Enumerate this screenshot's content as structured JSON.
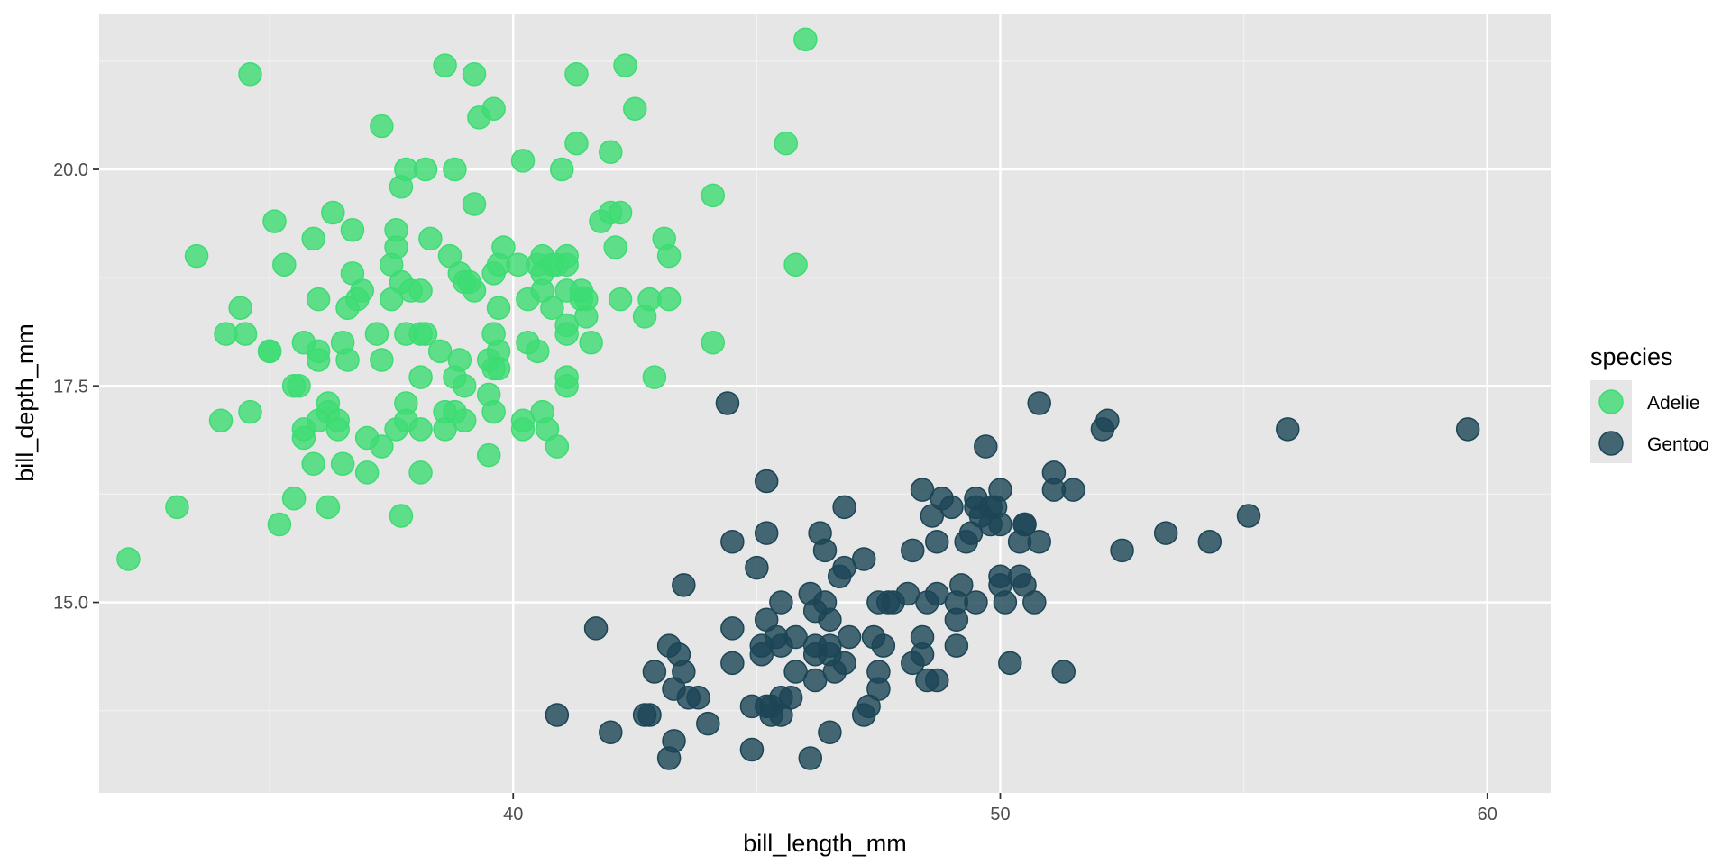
{
  "chart_data": {
    "type": "scatter",
    "xlabel": "bill_length_mm",
    "ylabel": "bill_depth_mm",
    "xlim": [
      31.5,
      61.3
    ],
    "ylim": [
      12.8,
      21.8
    ],
    "x_ticks": [
      40,
      50,
      60
    ],
    "x_tick_labels": [
      "40",
      "50",
      "60"
    ],
    "y_ticks": [
      15.0,
      17.5,
      20.0
    ],
    "y_tick_labels": [
      "15.0",
      "17.5",
      "20.0"
    ],
    "grid": true,
    "legend": {
      "title": "species",
      "position": "right"
    },
    "series": [
      {
        "name": "Adelie",
        "color": "#3ddc73",
        "points": [
          [
            32.1,
            15.5
          ],
          [
            33.1,
            16.1
          ],
          [
            33.5,
            19.0
          ],
          [
            34.0,
            17.1
          ],
          [
            34.1,
            18.1
          ],
          [
            34.4,
            18.4
          ],
          [
            34.5,
            18.1
          ],
          [
            34.6,
            21.1
          ],
          [
            34.6,
            17.2
          ],
          [
            35.0,
            17.9
          ],
          [
            35.0,
            17.9
          ],
          [
            35.1,
            19.4
          ],
          [
            35.2,
            15.9
          ],
          [
            35.3,
            18.9
          ],
          [
            35.5,
            16.2
          ],
          [
            35.5,
            17.5
          ],
          [
            35.6,
            17.5
          ],
          [
            35.7,
            16.9
          ],
          [
            35.7,
            17.0
          ],
          [
            35.7,
            18.0
          ],
          [
            35.9,
            16.6
          ],
          [
            35.9,
            19.2
          ],
          [
            36.0,
            17.1
          ],
          [
            36.0,
            17.8
          ],
          [
            36.0,
            17.9
          ],
          [
            36.0,
            18.5
          ],
          [
            36.2,
            16.1
          ],
          [
            36.2,
            17.2
          ],
          [
            36.2,
            17.3
          ],
          [
            36.3,
            19.5
          ],
          [
            36.4,
            17.0
          ],
          [
            36.4,
            17.1
          ],
          [
            36.5,
            16.6
          ],
          [
            36.5,
            18.0
          ],
          [
            36.6,
            17.8
          ],
          [
            36.6,
            18.4
          ],
          [
            36.7,
            18.8
          ],
          [
            36.7,
            19.3
          ],
          [
            36.8,
            18.5
          ],
          [
            36.9,
            18.6
          ],
          [
            37.0,
            16.5
          ],
          [
            37.0,
            16.9
          ],
          [
            37.2,
            18.1
          ],
          [
            37.3,
            16.8
          ],
          [
            37.3,
            17.8
          ],
          [
            37.3,
            20.5
          ],
          [
            37.5,
            18.5
          ],
          [
            37.5,
            18.9
          ],
          [
            37.6,
            17.0
          ],
          [
            37.6,
            19.1
          ],
          [
            37.6,
            19.3
          ],
          [
            37.7,
            16.0
          ],
          [
            37.7,
            18.7
          ],
          [
            37.7,
            19.8
          ],
          [
            37.8,
            17.1
          ],
          [
            37.8,
            17.3
          ],
          [
            37.8,
            18.1
          ],
          [
            37.8,
            20.0
          ],
          [
            37.9,
            18.6
          ],
          [
            38.1,
            16.5
          ],
          [
            38.1,
            17.0
          ],
          [
            38.1,
            17.6
          ],
          [
            38.1,
            18.1
          ],
          [
            38.1,
            18.6
          ],
          [
            38.2,
            18.1
          ],
          [
            38.2,
            20.0
          ],
          [
            38.3,
            19.2
          ],
          [
            38.5,
            17.9
          ],
          [
            38.6,
            17.0
          ],
          [
            38.6,
            17.2
          ],
          [
            38.6,
            21.2
          ],
          [
            38.7,
            19.0
          ],
          [
            38.8,
            17.2
          ],
          [
            38.8,
            17.6
          ],
          [
            38.8,
            20.0
          ],
          [
            38.9,
            17.8
          ],
          [
            38.9,
            18.8
          ],
          [
            39.0,
            17.1
          ],
          [
            39.0,
            17.5
          ],
          [
            39.0,
            18.7
          ],
          [
            39.1,
            18.7
          ],
          [
            39.2,
            18.6
          ],
          [
            39.2,
            19.6
          ],
          [
            39.2,
            21.1
          ],
          [
            39.3,
            20.6
          ],
          [
            39.5,
            16.7
          ],
          [
            39.5,
            17.4
          ],
          [
            39.5,
            17.8
          ],
          [
            39.6,
            17.2
          ],
          [
            39.6,
            17.7
          ],
          [
            39.6,
            18.1
          ],
          [
            39.6,
            18.8
          ],
          [
            39.6,
            20.7
          ],
          [
            39.7,
            17.7
          ],
          [
            39.7,
            17.9
          ],
          [
            39.7,
            18.4
          ],
          [
            39.7,
            18.9
          ],
          [
            39.8,
            19.1
          ],
          [
            40.1,
            18.9
          ],
          [
            40.2,
            17.0
          ],
          [
            40.2,
            17.1
          ],
          [
            40.2,
            20.1
          ],
          [
            40.3,
            18.0
          ],
          [
            40.3,
            18.5
          ],
          [
            40.5,
            17.9
          ],
          [
            40.5,
            18.9
          ],
          [
            40.6,
            17.2
          ],
          [
            40.6,
            18.6
          ],
          [
            40.6,
            18.8
          ],
          [
            40.6,
            19.0
          ],
          [
            40.7,
            17.0
          ],
          [
            40.8,
            18.4
          ],
          [
            40.8,
            18.9
          ],
          [
            40.9,
            16.8
          ],
          [
            40.9,
            18.9
          ],
          [
            41.0,
            20.0
          ],
          [
            41.1,
            17.5
          ],
          [
            41.1,
            17.6
          ],
          [
            41.1,
            18.1
          ],
          [
            41.1,
            18.2
          ],
          [
            41.1,
            18.6
          ],
          [
            41.1,
            18.9
          ],
          [
            41.1,
            19.0
          ],
          [
            41.3,
            20.3
          ],
          [
            41.3,
            21.1
          ],
          [
            41.4,
            18.5
          ],
          [
            41.4,
            18.6
          ],
          [
            41.5,
            18.3
          ],
          [
            41.5,
            18.5
          ],
          [
            41.6,
            18.0
          ],
          [
            41.8,
            19.4
          ],
          [
            42.0,
            19.5
          ],
          [
            42.0,
            20.2
          ],
          [
            42.1,
            19.1
          ],
          [
            42.2,
            18.5
          ],
          [
            42.2,
            19.5
          ],
          [
            42.3,
            21.2
          ],
          [
            42.5,
            20.7
          ],
          [
            42.7,
            18.3
          ],
          [
            42.8,
            18.5
          ],
          [
            42.9,
            17.6
          ],
          [
            43.1,
            19.2
          ],
          [
            43.2,
            18.5
          ],
          [
            43.2,
            19.0
          ],
          [
            44.1,
            18.0
          ],
          [
            44.1,
            19.7
          ],
          [
            45.6,
            20.3
          ],
          [
            45.8,
            18.9
          ],
          [
            46.0,
            21.5
          ]
        ]
      },
      {
        "name": "Gentoo",
        "color": "#1c4555",
        "points": [
          [
            40.9,
            13.7
          ],
          [
            41.7,
            14.7
          ],
          [
            42.0,
            13.5
          ],
          [
            42.7,
            13.7
          ],
          [
            42.8,
            13.7
          ],
          [
            42.9,
            14.2
          ],
          [
            43.2,
            13.2
          ],
          [
            43.2,
            14.5
          ],
          [
            43.3,
            13.4
          ],
          [
            43.3,
            14.0
          ],
          [
            43.4,
            14.4
          ],
          [
            43.5,
            14.2
          ],
          [
            43.5,
            15.2
          ],
          [
            43.6,
            13.9
          ],
          [
            43.8,
            13.9
          ],
          [
            44.0,
            13.6
          ],
          [
            44.4,
            17.3
          ],
          [
            44.5,
            14.3
          ],
          [
            44.5,
            14.7
          ],
          [
            44.5,
            15.7
          ],
          [
            44.9,
            13.3
          ],
          [
            44.9,
            13.8
          ],
          [
            45.0,
            15.4
          ],
          [
            45.1,
            14.4
          ],
          [
            45.1,
            14.5
          ],
          [
            45.2,
            13.8
          ],
          [
            45.2,
            14.8
          ],
          [
            45.2,
            15.8
          ],
          [
            45.2,
            16.4
          ],
          [
            45.3,
            13.7
          ],
          [
            45.3,
            13.8
          ],
          [
            45.4,
            14.6
          ],
          [
            45.5,
            13.7
          ],
          [
            45.5,
            13.9
          ],
          [
            45.5,
            14.5
          ],
          [
            45.5,
            15.0
          ],
          [
            45.7,
            13.9
          ],
          [
            45.8,
            14.2
          ],
          [
            45.8,
            14.6
          ],
          [
            46.1,
            13.2
          ],
          [
            46.1,
            15.1
          ],
          [
            46.2,
            14.1
          ],
          [
            46.2,
            14.4
          ],
          [
            46.2,
            14.5
          ],
          [
            46.2,
            14.9
          ],
          [
            46.3,
            15.8
          ],
          [
            46.4,
            15.0
          ],
          [
            46.4,
            15.6
          ],
          [
            46.5,
            13.5
          ],
          [
            46.5,
            14.4
          ],
          [
            46.5,
            14.5
          ],
          [
            46.5,
            14.8
          ],
          [
            46.6,
            14.2
          ],
          [
            46.7,
            15.3
          ],
          [
            46.8,
            14.3
          ],
          [
            46.8,
            15.4
          ],
          [
            46.8,
            16.1
          ],
          [
            46.9,
            14.6
          ],
          [
            47.2,
            13.7
          ],
          [
            47.2,
            15.5
          ],
          [
            47.3,
            13.8
          ],
          [
            47.4,
            14.6
          ],
          [
            47.5,
            14.0
          ],
          [
            47.5,
            14.2
          ],
          [
            47.5,
            15.0
          ],
          [
            47.6,
            14.5
          ],
          [
            47.7,
            15.0
          ],
          [
            47.8,
            15.0
          ],
          [
            48.1,
            15.1
          ],
          [
            48.2,
            14.3
          ],
          [
            48.2,
            15.6
          ],
          [
            48.4,
            14.4
          ],
          [
            48.4,
            14.6
          ],
          [
            48.4,
            16.3
          ],
          [
            48.5,
            14.1
          ],
          [
            48.5,
            15.0
          ],
          [
            48.6,
            16.0
          ],
          [
            48.7,
            14.1
          ],
          [
            48.7,
            15.1
          ],
          [
            48.7,
            15.7
          ],
          [
            48.8,
            16.2
          ],
          [
            49.0,
            16.1
          ],
          [
            49.1,
            14.5
          ],
          [
            49.1,
            14.8
          ],
          [
            49.1,
            15.0
          ],
          [
            49.2,
            15.2
          ],
          [
            49.3,
            15.7
          ],
          [
            49.4,
            15.8
          ],
          [
            49.5,
            15.0
          ],
          [
            49.5,
            16.1
          ],
          [
            49.5,
            16.2
          ],
          [
            49.6,
            16.0
          ],
          [
            49.7,
            16.8
          ],
          [
            49.8,
            15.9
          ],
          [
            49.8,
            16.1
          ],
          [
            49.9,
            16.1
          ],
          [
            50.0,
            15.2
          ],
          [
            50.0,
            15.3
          ],
          [
            50.0,
            15.9
          ],
          [
            50.0,
            16.3
          ],
          [
            50.1,
            15.0
          ],
          [
            50.2,
            14.3
          ],
          [
            50.4,
            15.3
          ],
          [
            50.4,
            15.7
          ],
          [
            50.5,
            15.2
          ],
          [
            50.5,
            15.9
          ],
          [
            50.5,
            15.9
          ],
          [
            50.7,
            15.0
          ],
          [
            50.8,
            15.7
          ],
          [
            50.8,
            17.3
          ],
          [
            51.1,
            16.3
          ],
          [
            51.1,
            16.5
          ],
          [
            51.3,
            14.2
          ],
          [
            51.5,
            16.3
          ],
          [
            52.1,
            17.0
          ],
          [
            52.2,
            17.1
          ],
          [
            52.5,
            15.6
          ],
          [
            53.4,
            15.8
          ],
          [
            54.3,
            15.7
          ],
          [
            55.1,
            16.0
          ],
          [
            55.9,
            17.0
          ],
          [
            59.6,
            17.0
          ]
        ]
      }
    ]
  }
}
